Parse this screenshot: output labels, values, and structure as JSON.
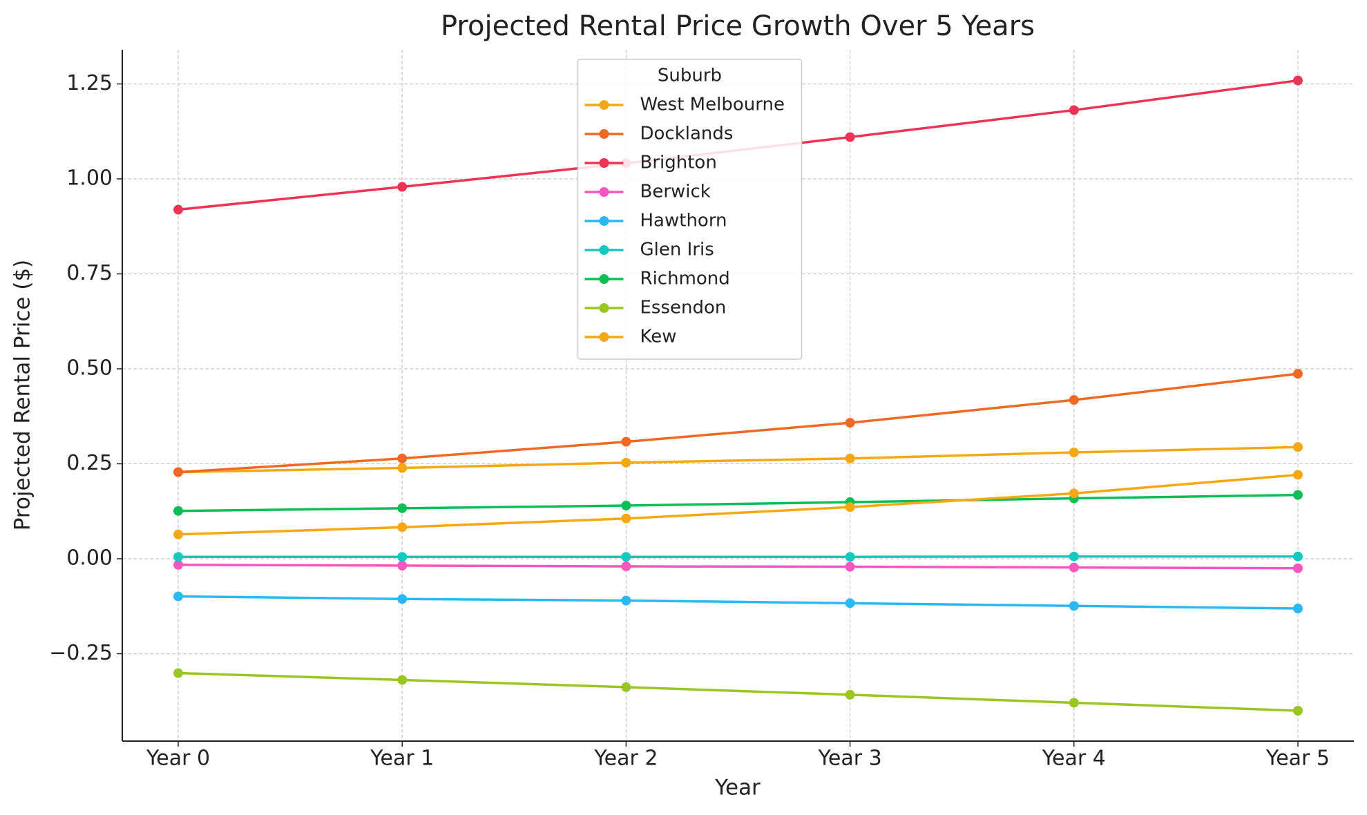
{
  "chart_data": {
    "type": "line",
    "title": "Projected Rental Price Growth Over 5 Years",
    "x_label": "Year",
    "y_label": "Projected Rental Price ($)",
    "categories": [
      "Year 0",
      "Year 1",
      "Year 2",
      "Year 3",
      "Year 4",
      "Year 5"
    ],
    "series": [
      {
        "name": "West Melbourne",
        "color": "#f5a814",
        "values": [
          0.228,
          0.239,
          0.253,
          0.264,
          0.28,
          0.294
        ]
      },
      {
        "name": "Docklands",
        "color": "#ee6a24",
        "values": [
          0.228,
          0.264,
          0.308,
          0.358,
          0.418,
          0.487
        ]
      },
      {
        "name": "Brighton",
        "color": "#ee3355",
        "values": [
          0.919,
          0.979,
          1.041,
          1.11,
          1.181,
          1.259
        ]
      },
      {
        "name": "Berwick",
        "color": "#f556c0",
        "values": [
          -0.016,
          -0.018,
          -0.02,
          -0.021,
          -0.023,
          -0.025
        ]
      },
      {
        "name": "Hawthorn",
        "color": "#2bb8f5",
        "values": [
          -0.099,
          -0.106,
          -0.11,
          -0.117,
          -0.124,
          -0.131
        ]
      },
      {
        "name": "Glen Iris",
        "color": "#13c9c0",
        "values": [
          0.005,
          0.005,
          0.005,
          0.005,
          0.006,
          0.006
        ]
      },
      {
        "name": "Richmond",
        "color": "#0dbd55",
        "values": [
          0.126,
          0.133,
          0.14,
          0.149,
          0.159,
          0.168
        ]
      },
      {
        "name": "Essendon",
        "color": "#99c623",
        "values": [
          -0.301,
          -0.319,
          -0.338,
          -0.358,
          -0.379,
          -0.4
        ]
      },
      {
        "name": "Kew",
        "color": "#f5a814",
        "values": [
          0.064,
          0.083,
          0.106,
          0.136,
          0.172,
          0.221
        ]
      }
    ],
    "ylim": [
      -0.48,
      1.34
    ],
    "yticks": [
      {
        "value": -0.25,
        "label": "−0.25"
      },
      {
        "value": 0,
        "label": "0.00"
      },
      {
        "value": 0.25,
        "label": "0.25"
      },
      {
        "value": 0.5,
        "label": "0.50"
      },
      {
        "value": 0.75,
        "label": "0.75"
      },
      {
        "value": 1,
        "label": "1.00"
      },
      {
        "value": 1.25,
        "label": "1.25"
      }
    ],
    "grid": true,
    "legend_title": "Suburb",
    "legend_position": "upper center"
  }
}
